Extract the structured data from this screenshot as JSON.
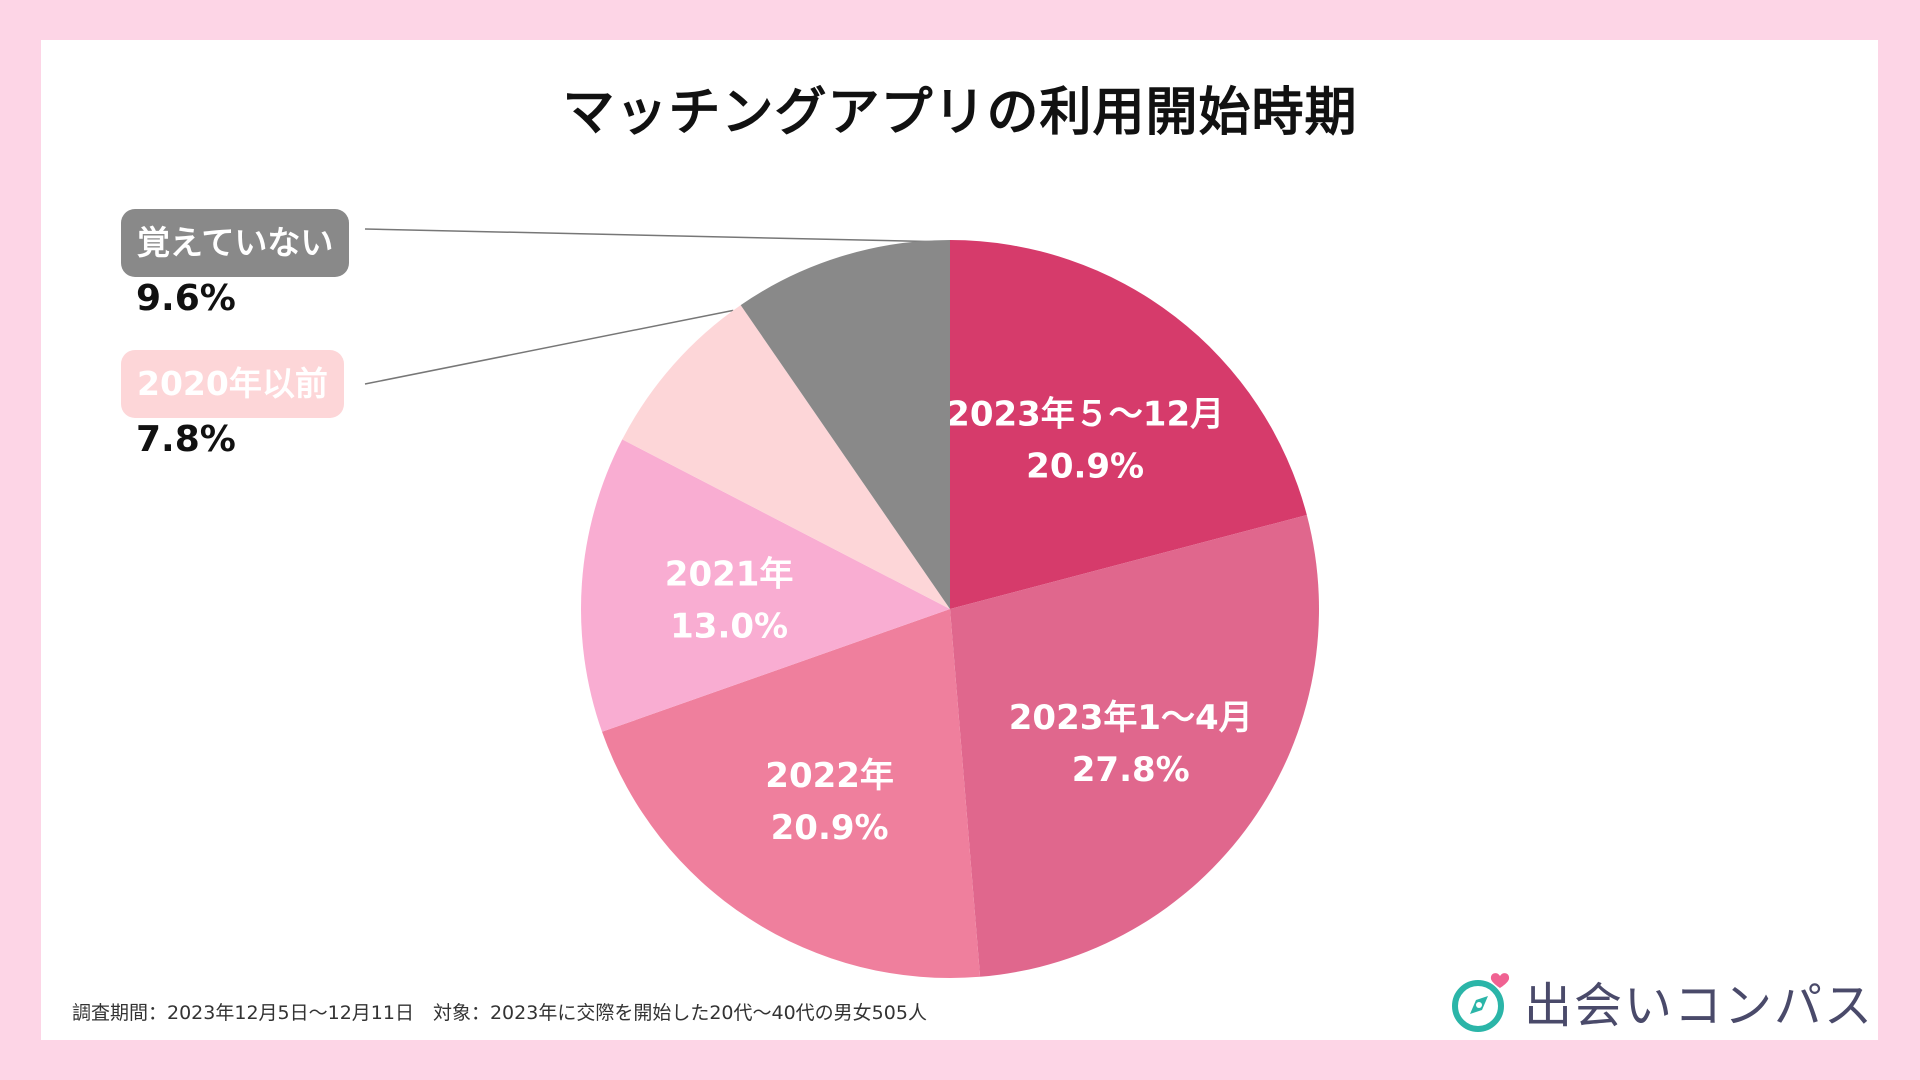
{
  "chart_data": {
    "type": "pie",
    "title": "マッチングアプリの利用開始時期",
    "slices": [
      {
        "label": "2023年５～12月",
        "value": 20.9,
        "value_label": "20.9%",
        "color": "#d63b6b",
        "label_style": "inside"
      },
      {
        "label": "2023年1～4月",
        "value": 27.8,
        "value_label": "27.8%",
        "color": "#e0678d",
        "label_style": "inside"
      },
      {
        "label": "2022年",
        "value": 20.9,
        "value_label": "20.9%",
        "color": "#ef7f9d",
        "label_style": "inside"
      },
      {
        "label": "2021年",
        "value": 13.0,
        "value_label": "13.0%",
        "color": "#f9add2",
        "label_style": "inside"
      },
      {
        "label": "2020年以前",
        "value": 7.8,
        "value_label": "7.8%",
        "color": "#fdd6d8",
        "label_style": "callout"
      },
      {
        "label": "覚えていない",
        "value": 9.6,
        "value_label": "9.6%",
        "color": "#898989",
        "label_style": "callout"
      }
    ],
    "start": "12 o'clock",
    "direction": "clockwise"
  },
  "footer": {
    "note": "調査期間：2023年12月5日～12月11日　対象：2023年に交際を開始した20代～40代の男女505人"
  },
  "brand": {
    "name": "出会いコンパス",
    "logo_icon": "compass-heart-icon",
    "logo_color": "#2bb5a8",
    "heart_color": "#f06292"
  },
  "colors": {
    "background": "#fdd5e6",
    "card": "#ffffff"
  }
}
